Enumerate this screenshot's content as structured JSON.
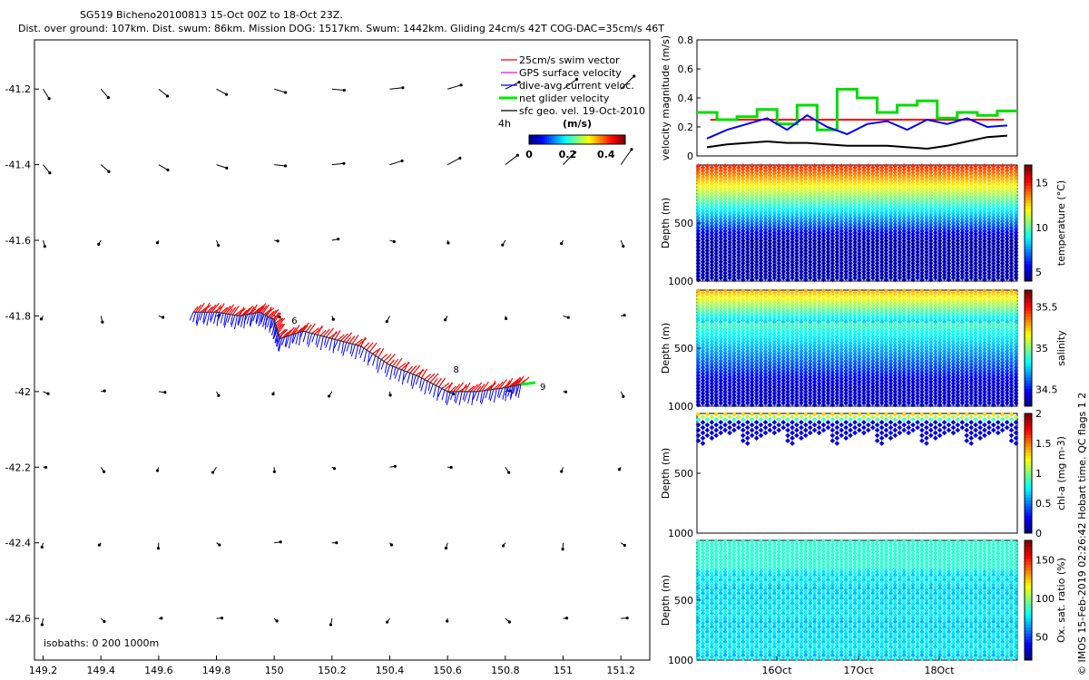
{
  "header": {
    "title_line1": "SG519 Bicheno20100813 15-Oct 00Z to 18-Oct 23Z.",
    "title_line2": "Dist. over ground: 107km. Dist. swum: 86km. Mission DOG: 1517km. Swum: 1442km. Gliding 24cm/s 42T COG-DAC=35cm/s 46T"
  },
  "footer": "© IMOS 15-Feb-2019 02:26:42 Hobart time. QC flags 1  2",
  "chart_data": [
    {
      "type": "scatter",
      "panel": "map",
      "x_ticks": [
        "149.2",
        "149.4",
        "149.6",
        "149.8",
        "150",
        "150.2",
        "150.4",
        "150.6",
        "150.8",
        "151",
        "151.2"
      ],
      "y_ticks": [
        "-41.2",
        "-41.4",
        "-41.6",
        "-41.8",
        "-42",
        "-42.2",
        "-42.4",
        "-42.6"
      ],
      "xlim": [
        149.17,
        151.3
      ],
      "ylim": [
        -42.71,
        -41.07
      ],
      "legend": {
        "items": [
          {
            "label": "25cm/s swim vector",
            "color": "#ff0000"
          },
          {
            "label": "GPS surface velocity",
            "color": "#ff00ff"
          },
          {
            "label": "dive-avg current veloc.",
            "color": "#0000ff"
          },
          {
            "label": "net glider velocity",
            "color": "#00ee00"
          },
          {
            "label": "sfc geo. vel. 19-Oct-2010",
            "color": "#000000"
          }
        ],
        "time_step": "4h",
        "colorbar_label": "(m/s)",
        "colorbar_ticks": [
          "0",
          "0.2",
          "0.4"
        ]
      },
      "isobaths_label": "isobaths: 0   200  1000m",
      "track_labels": [
        "6",
        "8",
        "9"
      ],
      "track": {
        "lon": [
          149.72,
          149.8,
          149.88,
          149.95,
          150.0,
          150.02,
          150.1,
          150.2,
          150.3,
          150.4,
          150.5,
          150.6,
          150.7,
          150.8,
          150.86
        ],
        "lat": [
          -41.79,
          -41.79,
          -41.8,
          -41.79,
          -41.81,
          -41.86,
          -41.84,
          -41.86,
          -41.88,
          -41.93,
          -41.96,
          -42.0,
          -42.0,
          -41.99,
          -41.98
        ]
      },
      "current_grid": {
        "lon": [
          149.2,
          149.4,
          149.6,
          149.8,
          150.0,
          150.2,
          150.4,
          150.6,
          150.8,
          151.0,
          151.2
        ],
        "lat": [
          -41.2,
          -41.4,
          -41.6,
          -41.8,
          -42.0,
          -42.2,
          -42.4,
          -42.6
        ]
      }
    },
    {
      "type": "line",
      "panel": "velocity",
      "ylabel": "velocity magnitude (m/s)",
      "y_ticks": [
        "0",
        "0.2",
        "0.4",
        "0.6",
        "0.8"
      ],
      "ylim": [
        0,
        0.8
      ],
      "series": [
        {
          "color": "#ff0000",
          "values": [
            0.25,
            0.25,
            0.25,
            0.25,
            0.25,
            0.25,
            0.25,
            0.25,
            0.25,
            0.25,
            0.25,
            0.25
          ]
        },
        {
          "color": "#00dd00",
          "values": [
            0.3,
            0.25,
            0.27,
            0.32,
            0.22,
            0.35,
            0.18,
            0.46,
            0.4,
            0.3,
            0.35,
            0.38,
            0.26,
            0.3,
            0.28,
            0.31
          ]
        },
        {
          "color": "#0000ff",
          "values": [
            0.12,
            0.18,
            0.22,
            0.26,
            0.18,
            0.28,
            0.2,
            0.15,
            0.22,
            0.24,
            0.18,
            0.25,
            0.22,
            0.26,
            0.2,
            0.21
          ]
        },
        {
          "color": "#000000",
          "values": [
            0.06,
            0.08,
            0.09,
            0.1,
            0.09,
            0.09,
            0.08,
            0.07,
            0.07,
            0.07,
            0.06,
            0.05,
            0.07,
            0.1,
            0.13,
            0.14
          ]
        }
      ]
    },
    {
      "type": "scatter",
      "panel": "temperature",
      "ylabel": "Depth (m)",
      "y_ticks": [
        "500",
        "1000"
      ],
      "ylim": [
        0,
        1000
      ],
      "colorbar_label": "temperature (°C)",
      "colorbar_ticks": [
        "5",
        "10",
        "15"
      ],
      "colorbar_range": [
        4,
        17
      ],
      "n_dives": 36,
      "max_depth": 1000
    },
    {
      "type": "scatter",
      "panel": "salinity",
      "ylabel": "Depth (m)",
      "y_ticks": [
        "500",
        "1000"
      ],
      "ylim": [
        0,
        1000
      ],
      "colorbar_label": "salinity",
      "colorbar_ticks": [
        "34.5",
        "35",
        "35.5"
      ],
      "colorbar_range": [
        34.3,
        35.7
      ],
      "n_dives": 36,
      "max_depth": 1000
    },
    {
      "type": "scatter",
      "panel": "chlorophyll",
      "ylabel": "Depth (m)",
      "y_ticks": [
        "500",
        "1000"
      ],
      "ylim": [
        0,
        1000
      ],
      "colorbar_label": "chl-a (mg m-3)",
      "colorbar_ticks": [
        "0",
        "0.5",
        "1",
        "1.5",
        "2"
      ],
      "colorbar_range": [
        0,
        2
      ],
      "n_dives": 36,
      "max_depth": 250
    },
    {
      "type": "scatter",
      "panel": "oxygen",
      "ylabel": "Depth (m)",
      "y_ticks": [
        "500",
        "1000"
      ],
      "ylim": [
        0,
        1000
      ],
      "x_ticks": [
        "16Oct",
        "17Oct",
        "18Oct"
      ],
      "colorbar_label": "Ox. sat. ratio (%)",
      "colorbar_ticks": [
        "50",
        "100",
        "150"
      ],
      "colorbar_range": [
        20,
        175
      ],
      "n_dives": 36,
      "max_depth": 1000
    }
  ]
}
